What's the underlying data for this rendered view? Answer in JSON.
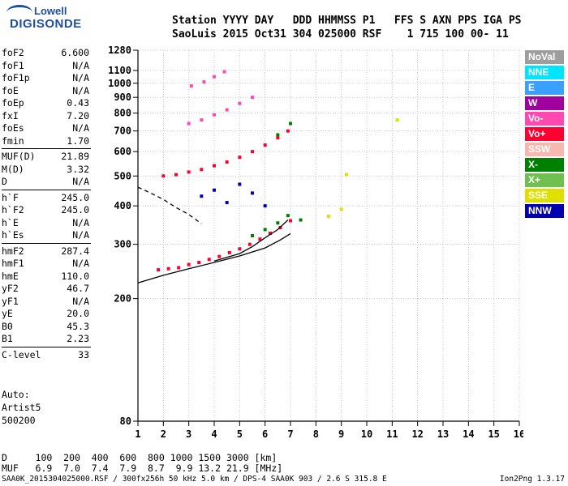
{
  "logo": {
    "line1": "Lowell",
    "line2": "DIGISONDE"
  },
  "header": {
    "line1": "Station YYYY DAY   DDD HHMMSS P1   FFS S AXN PPS IGA PS",
    "line2": "SaoLuis 2015 Oct31 304 025000 RSF    1 715 100 00- 11"
  },
  "params_groups": [
    [
      {
        "label": "foF2",
        "value": "6.600"
      },
      {
        "label": "foF1",
        "value": "N/A"
      },
      {
        "label": "foF1p",
        "value": "N/A"
      },
      {
        "label": "foE",
        "value": "N/A"
      },
      {
        "label": "foEp",
        "value": "0.43"
      },
      {
        "label": "fxI",
        "value": "7.20"
      },
      {
        "label": "foEs",
        "value": "N/A"
      },
      {
        "label": "fmin",
        "value": "1.70"
      }
    ],
    [
      {
        "label": "MUF(D)",
        "value": "21.89"
      },
      {
        "label": "M(D)",
        "value": "3.32"
      },
      {
        "label": "D",
        "value": "N/A"
      }
    ],
    [
      {
        "label": "h`F",
        "value": "245.0"
      },
      {
        "label": "h`F2",
        "value": "245.0"
      },
      {
        "label": "h`E",
        "value": "N/A"
      },
      {
        "label": "h`Es",
        "value": "N/A"
      }
    ],
    [
      {
        "label": "hmF2",
        "value": "287.4"
      },
      {
        "label": "hmF1",
        "value": "N/A"
      },
      {
        "label": "hmE",
        "value": "110.0"
      },
      {
        "label": "yF2",
        "value": "46.7"
      },
      {
        "label": "yF1",
        "value": "N/A"
      },
      {
        "label": "yE",
        "value": "20.0"
      },
      {
        "label": "B0",
        "value": "45.3"
      },
      {
        "label": "B1",
        "value": "2.23"
      }
    ],
    [
      {
        "label": "C-level",
        "value": "33"
      }
    ]
  ],
  "auto": {
    "line1": "Auto:",
    "line2": "Artist5",
    "line3": "500200"
  },
  "dmuf": {
    "d_line": "D     100  200  400  600  800 1000 1500 3000 [km]",
    "muf_line": "MUF   6.9  7.0  7.4  7.9  8.7  9.9 13.2 21.9 [MHz]"
  },
  "footer": "SAA0K_2015304025000.RSF / 300fx256h 50 kHz 5.0 km / DPS-4 SAA0K 903 / 2.6 S 315.8 E",
  "version": "Ion2Png 1.3.17",
  "legend": [
    {
      "label": "NoVal",
      "color": "#9e9e9e"
    },
    {
      "label": "NNE",
      "color": "#00e5ff"
    },
    {
      "label": "E",
      "color": "#3aa0ff"
    },
    {
      "label": "W",
      "color": "#a000a0"
    },
    {
      "label": "Vo-",
      "color": "#ff48b0"
    },
    {
      "label": "Vo+",
      "color": "#ff0030"
    },
    {
      "label": "SSW",
      "color": "#f8b8b0"
    },
    {
      "label": "X-",
      "color": "#008000"
    },
    {
      "label": "X+",
      "color": "#70c050"
    },
    {
      "label": "SSE",
      "color": "#e0e000"
    },
    {
      "label": "NNW",
      "color": "#0000b0"
    }
  ],
  "chart_data": {
    "type": "scatter",
    "title": "",
    "xlabel": "",
    "ylabel": "",
    "xlim": [
      1,
      16
    ],
    "ylim": [
      80,
      1280
    ],
    "x_ticks": [
      1,
      2,
      3,
      4,
      5,
      6,
      7,
      8,
      9,
      10,
      11,
      12,
      13,
      14,
      15,
      16
    ],
    "y_ticks": [
      80,
      200,
      300,
      400,
      500,
      600,
      700,
      800,
      900,
      1000,
      1100,
      1280
    ],
    "y_scale": "log",
    "grid": "dotted",
    "legend_position": "right",
    "series": [
      {
        "name": "Vo+",
        "color": "#ff0030",
        "points": [
          [
            1.8,
            248
          ],
          [
            2.2,
            250
          ],
          [
            2.6,
            252
          ],
          [
            3.0,
            258
          ],
          [
            3.4,
            262
          ],
          [
            3.8,
            268
          ],
          [
            4.2,
            274
          ],
          [
            4.6,
            282
          ],
          [
            5.0,
            290
          ],
          [
            5.4,
            300
          ],
          [
            5.8,
            312
          ],
          [
            6.2,
            326
          ],
          [
            6.6,
            340
          ],
          [
            7.0,
            358
          ],
          [
            2.0,
            500
          ],
          [
            2.5,
            505
          ],
          [
            3.0,
            515
          ],
          [
            3.5,
            525
          ],
          [
            4.0,
            540
          ],
          [
            4.5,
            555
          ],
          [
            5.0,
            575
          ],
          [
            5.5,
            600
          ],
          [
            6.0,
            630
          ],
          [
            6.5,
            665
          ],
          [
            6.9,
            700
          ]
        ]
      },
      {
        "name": "X-",
        "color": "#008000",
        "points": [
          [
            5.5,
            320
          ],
          [
            6.0,
            335
          ],
          [
            6.5,
            352
          ],
          [
            6.9,
            372
          ],
          [
            7.0,
            740
          ],
          [
            6.5,
            680
          ],
          [
            7.4,
            360
          ]
        ]
      },
      {
        "name": "Vo-",
        "color": "#ff48b0",
        "points": [
          [
            3.0,
            740
          ],
          [
            3.5,
            760
          ],
          [
            4.0,
            790
          ],
          [
            4.5,
            820
          ],
          [
            5.0,
            860
          ],
          [
            5.5,
            900
          ],
          [
            3.1,
            980
          ],
          [
            3.6,
            1010
          ],
          [
            4.0,
            1050
          ],
          [
            4.4,
            1090
          ]
        ]
      },
      {
        "name": "NNW",
        "color": "#0000b0",
        "points": [
          [
            3.5,
            430
          ],
          [
            4.0,
            450
          ],
          [
            4.5,
            410
          ],
          [
            5.0,
            470
          ],
          [
            5.5,
            440
          ],
          [
            6.0,
            400
          ]
        ]
      },
      {
        "name": "SSE",
        "color": "#e0e000",
        "points": [
          [
            8.5,
            370
          ],
          [
            9.0,
            390
          ],
          [
            9.2,
            505
          ],
          [
            11.2,
            760
          ]
        ]
      }
    ],
    "curves": [
      {
        "name": "",
        "style": "solid",
        "color": "#000000",
        "x": [
          1.0,
          2.0,
          3.0,
          4.0,
          5.0,
          6.0,
          6.6,
          7.0
        ],
        "y": [
          225,
          238,
          250,
          262,
          275,
          292,
          310,
          325
        ]
      },
      {
        "name": "",
        "style": "solid",
        "color": "#000000",
        "x": [
          4.0,
          5.0,
          5.5,
          6.0,
          6.5,
          6.9
        ],
        "y": [
          265,
          280,
          295,
          315,
          335,
          360
        ]
      },
      {
        "name": "",
        "style": "dashed",
        "color": "#000000",
        "x": [
          1.0,
          1.5,
          2.0,
          2.5,
          3.0,
          3.5
        ],
        "y": [
          460,
          440,
          420,
          395,
          375,
          350
        ]
      }
    ]
  }
}
